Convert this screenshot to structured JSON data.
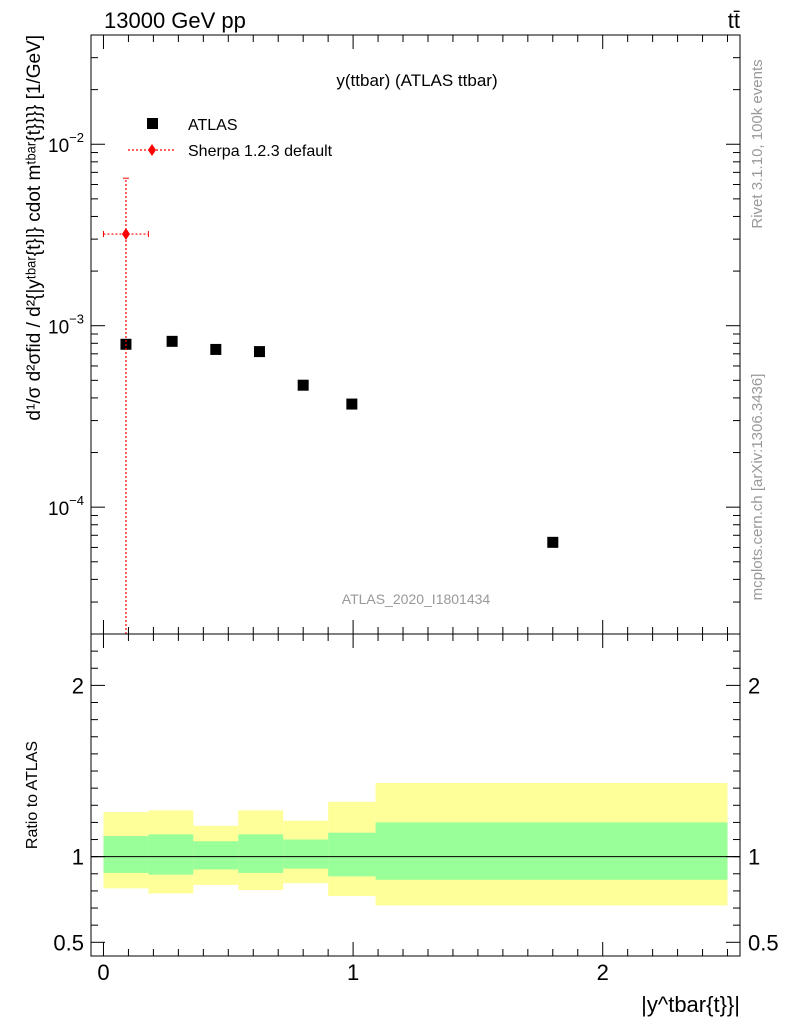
{
  "header": {
    "left": "13000 GeV pp",
    "right": "tt̄"
  },
  "side_labels": {
    "rivet": "Rivet 3.1.10,  100k events",
    "mcplots": "mcplots.cern.ch [arXiv:1306.3436]"
  },
  "chart_data": [
    {
      "type": "scatter",
      "title": "y(ttbar) (ATLAS ttbar)",
      "watermark": "ATLAS_2020_I1801434",
      "ylabel": "d¹/σ d²σfid / d²{|yᵗᵇᵃʳ{t}|} cdot mᵗᵇᵃʳ{t}}}} [1/GeV]",
      "xlabel": "|y^tbar{t}}|",
      "yscale": "log",
      "ylim": [
        2e-05,
        0.04
      ],
      "xlim": [
        -0.05,
        2.55
      ],
      "y_tick_labels": [
        "10^-4",
        "10^-3",
        "10^-2"
      ],
      "legend": {
        "placement": "top-left"
      },
      "series": [
        {
          "name": "ATLAS",
          "color": "#000000",
          "marker": "square",
          "x": [
            0.09,
            0.275,
            0.45,
            0.625,
            0.8,
            0.995,
            1.8
          ],
          "y": [
            0.00079,
            0.00082,
            0.00074,
            0.00072,
            0.00047,
            0.00037,
            6.4e-05
          ]
        },
        {
          "name": "Sherpa 1.2.3 default",
          "color": "#ff0000",
          "marker": "diamond",
          "x": [
            0.09
          ],
          "y": [
            0.0032
          ],
          "x_low": [
            0.0
          ],
          "x_high": [
            0.18
          ],
          "y_low": [
            1e-06
          ],
          "y_high": [
            0.0065
          ]
        }
      ]
    },
    {
      "type": "area",
      "ylabel": "Ratio to ATLAS",
      "xlabel": "|y^tbar{t}}|",
      "ylim": [
        0.42,
        2.3
      ],
      "xlim": [
        -0.05,
        2.55
      ],
      "x_tick_labels": [
        "0",
        "1",
        "2"
      ],
      "y_tick_labels": [
        "0.5",
        "1",
        "2"
      ],
      "reference": 1.0,
      "bins": [
        {
          "lo": 0.0,
          "hi": 0.18,
          "inner": [
            0.905,
            1.12
          ],
          "outer": [
            0.815,
            1.26
          ]
        },
        {
          "lo": 0.18,
          "hi": 0.36,
          "inner": [
            0.895,
            1.13
          ],
          "outer": [
            0.785,
            1.27
          ]
        },
        {
          "lo": 0.36,
          "hi": 0.54,
          "inner": [
            0.925,
            1.09
          ],
          "outer": [
            0.835,
            1.18
          ]
        },
        {
          "lo": 0.54,
          "hi": 0.72,
          "inner": [
            0.905,
            1.13
          ],
          "outer": [
            0.805,
            1.27
          ]
        },
        {
          "lo": 0.72,
          "hi": 0.9,
          "inner": [
            0.93,
            1.1
          ],
          "outer": [
            0.845,
            1.21
          ]
        },
        {
          "lo": 0.9,
          "hi": 1.09,
          "inner": [
            0.885,
            1.14
          ],
          "outer": [
            0.77,
            1.32
          ]
        },
        {
          "lo": 1.09,
          "hi": 2.5,
          "inner": [
            0.865,
            1.2
          ],
          "outer": [
            0.715,
            1.43
          ]
        }
      ],
      "colors": {
        "inner": "#99ff99",
        "outer": "#ffff99"
      }
    }
  ]
}
